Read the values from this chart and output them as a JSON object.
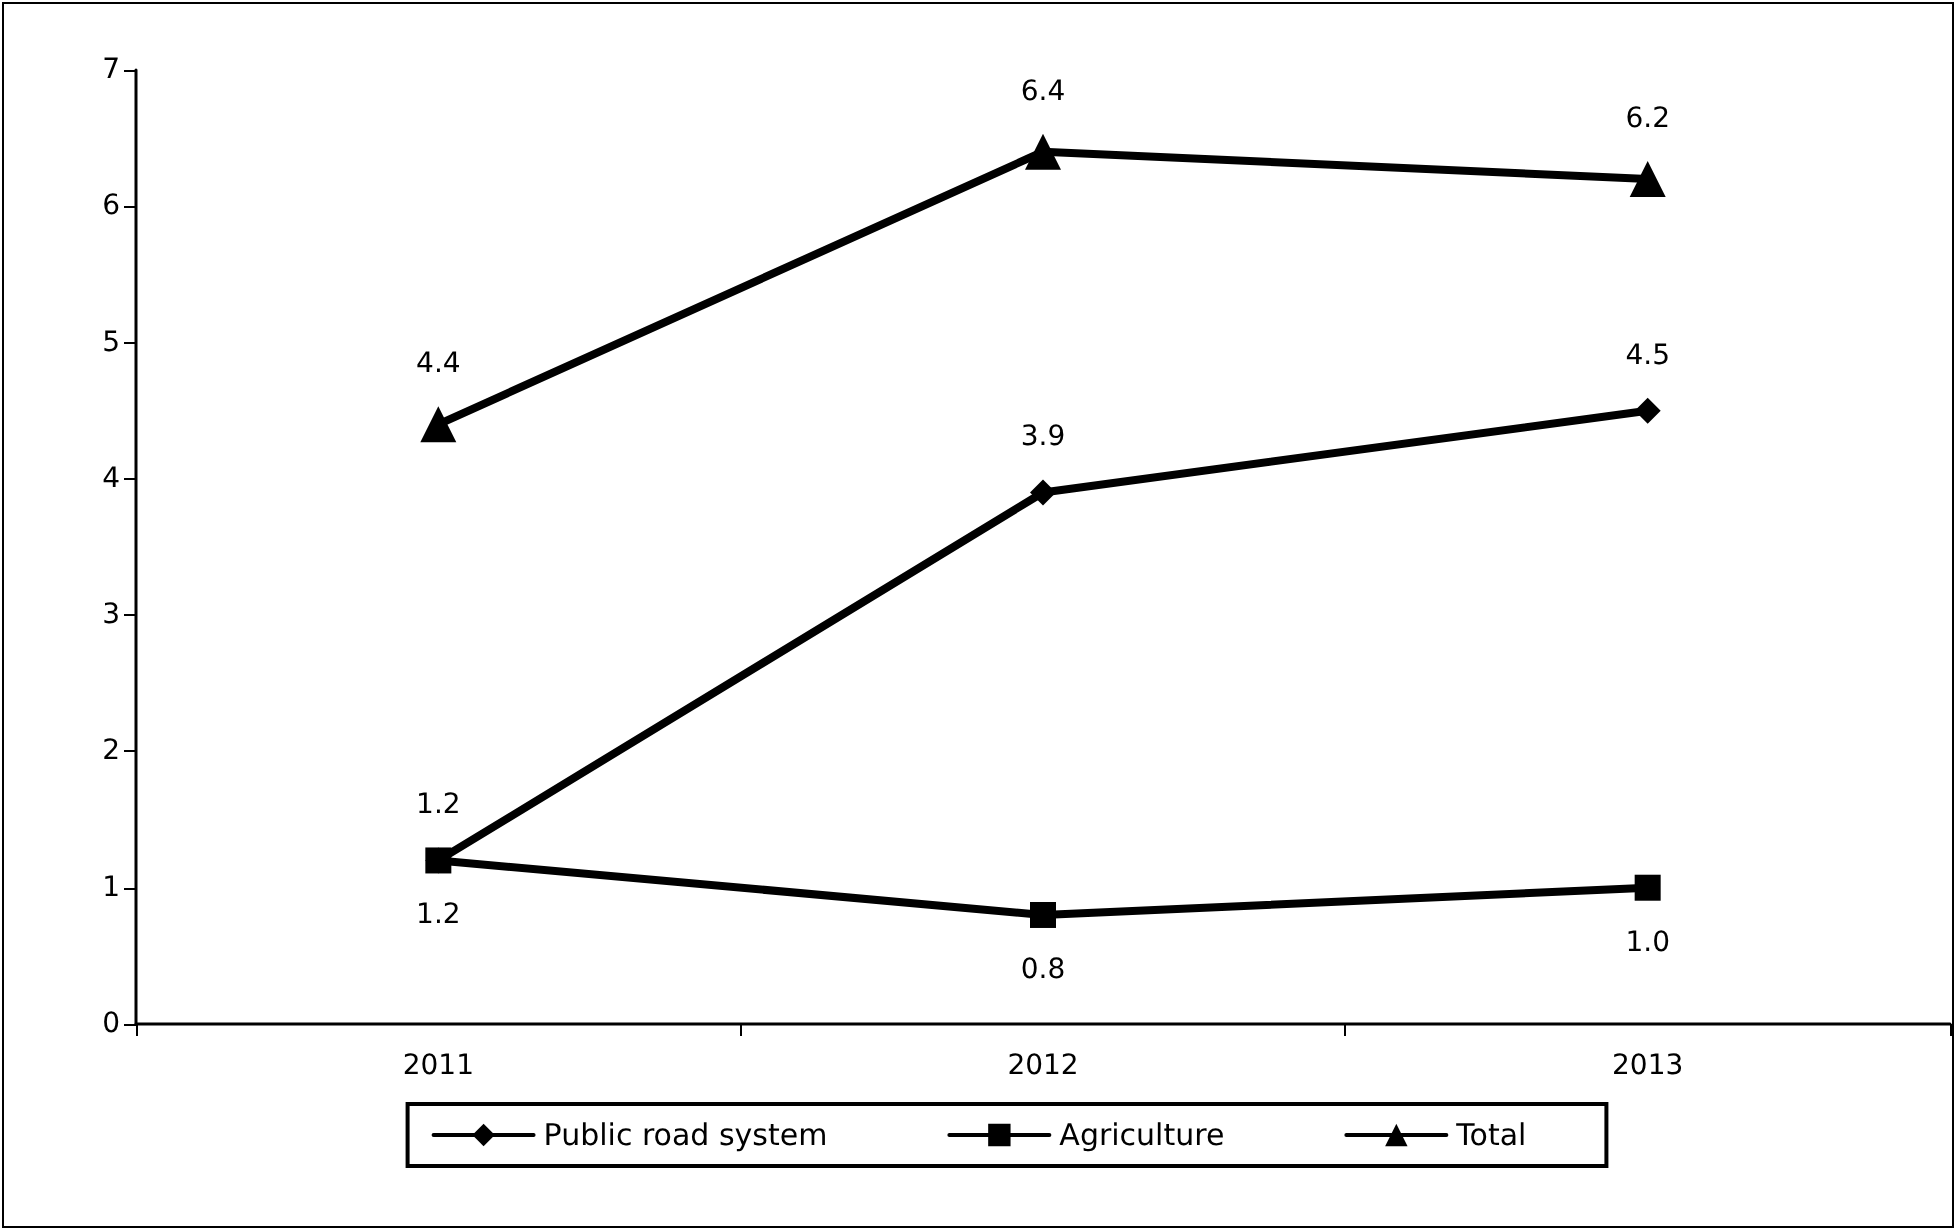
{
  "chart_data": {
    "type": "line",
    "categories": [
      "2011",
      "2012",
      "2013"
    ],
    "series": [
      {
        "name": "Public road system",
        "color": "#000000",
        "marker": "diamond",
        "values": [
          1.2,
          3.9,
          4.5
        ],
        "value_labels": [
          "1.2",
          "3.9",
          "4.5"
        ]
      },
      {
        "name": "Agriculture",
        "color": "#000000",
        "marker": "square",
        "values": [
          1.2,
          0.8,
          1.0
        ],
        "value_labels": [
          "1.2",
          "0.8",
          "1.0"
        ]
      },
      {
        "name": "Total",
        "color": "#000000",
        "marker": "triangle",
        "values": [
          4.4,
          6.4,
          6.2
        ],
        "value_labels": [
          "4.4",
          "6.4",
          "6.2"
        ]
      }
    ],
    "ylim": [
      0,
      7
    ],
    "yticks": [
      0,
      1,
      2,
      3,
      4,
      5,
      6,
      7
    ],
    "grid": false,
    "legend": "bottom",
    "line_style": "solid"
  }
}
